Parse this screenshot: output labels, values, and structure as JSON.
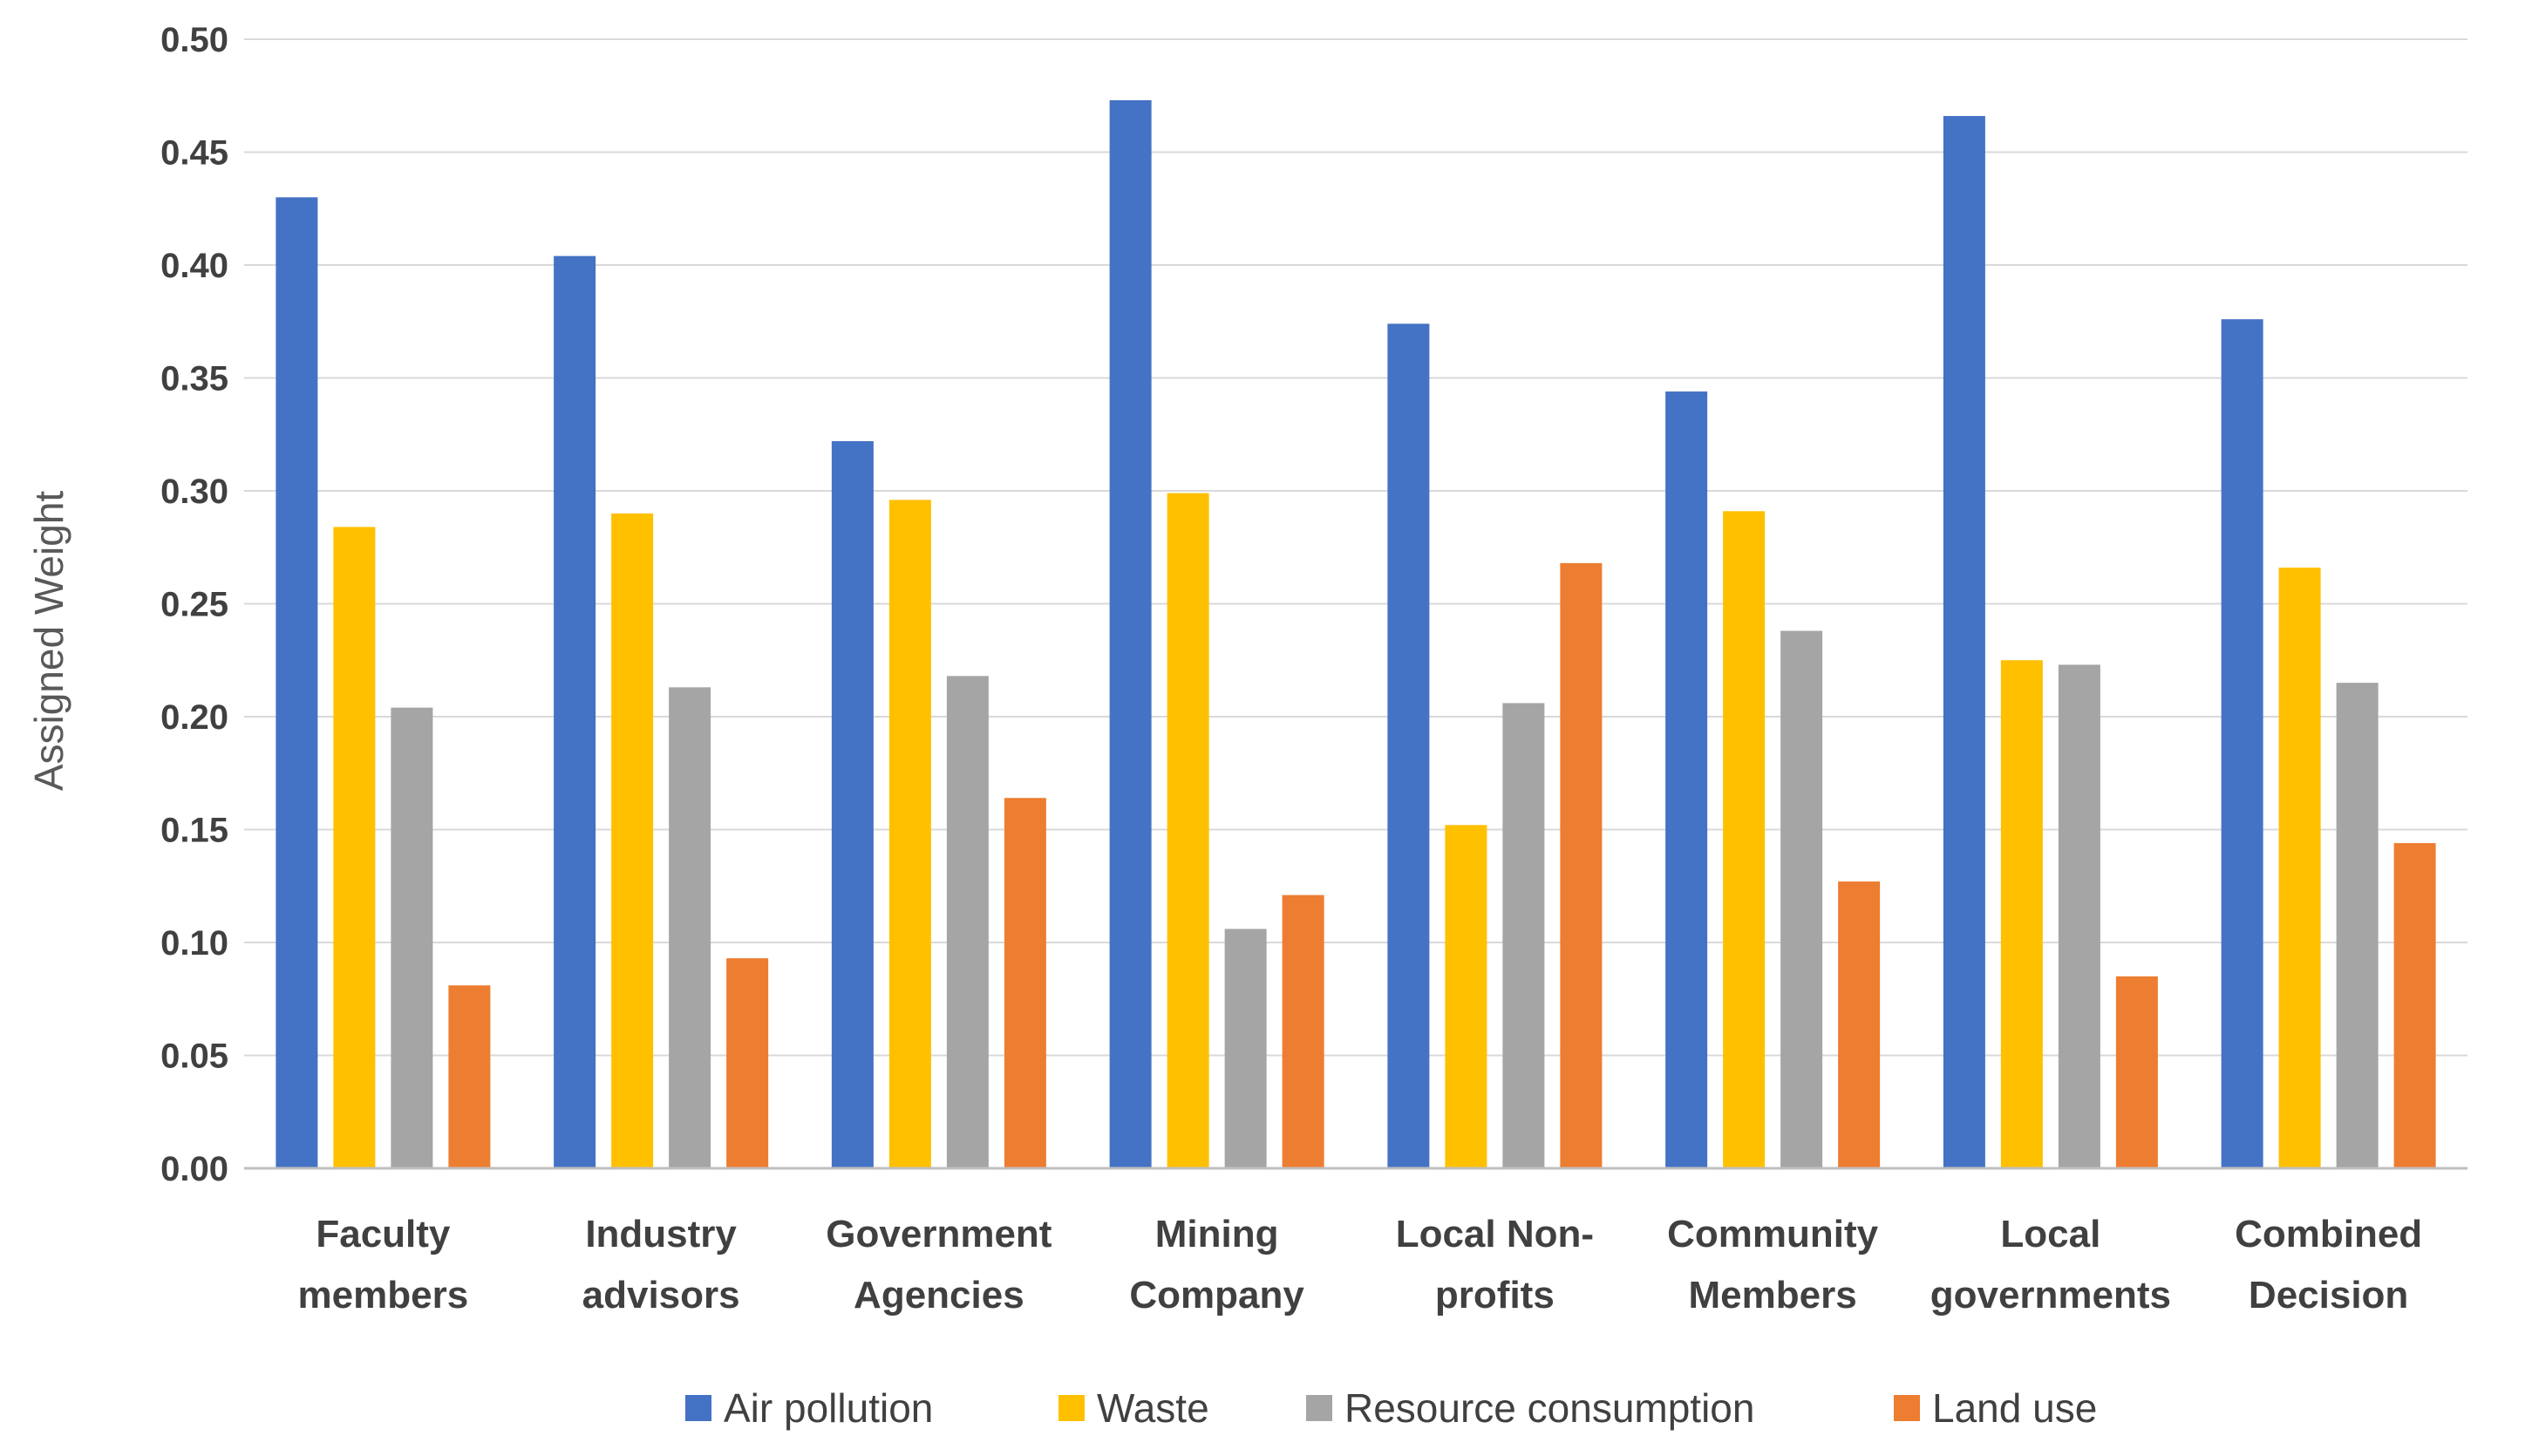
{
  "chart_data": {
    "type": "bar",
    "title": "",
    "xlabel": "",
    "ylabel": "Assigned Weight",
    "ylim": [
      0,
      0.5
    ],
    "yticks": [
      0.0,
      0.05,
      0.1,
      0.15,
      0.2,
      0.25,
      0.3,
      0.35,
      0.4,
      0.45,
      0.5
    ],
    "ytick_labels": [
      "0.00",
      "0.05",
      "0.10",
      "0.15",
      "0.20",
      "0.25",
      "0.30",
      "0.35",
      "0.40",
      "0.45",
      "0.50"
    ],
    "grid": true,
    "legend_position": "bottom",
    "categories": [
      [
        "Faculty",
        "members"
      ],
      [
        "Industry",
        "advisors"
      ],
      [
        "Government",
        "Agencies"
      ],
      [
        "Mining",
        "Company"
      ],
      [
        "Local Non-",
        "profits"
      ],
      [
        "Community",
        "Members"
      ],
      [
        "Local",
        "governments"
      ],
      [
        "Combined",
        "Decision"
      ]
    ],
    "series": [
      {
        "name": "Air pollution",
        "color": "#4472C4",
        "values": [
          0.43,
          0.404,
          0.322,
          0.473,
          0.374,
          0.344,
          0.466,
          0.376
        ]
      },
      {
        "name": "Waste",
        "color": "#FFC000",
        "values": [
          0.284,
          0.29,
          0.296,
          0.299,
          0.152,
          0.291,
          0.225,
          0.266
        ]
      },
      {
        "name": "Resource consumption",
        "color": "#A5A5A5",
        "values": [
          0.204,
          0.213,
          0.218,
          0.106,
          0.206,
          0.238,
          0.223,
          0.215
        ]
      },
      {
        "name": "Land use",
        "color": "#ED7D31",
        "values": [
          0.081,
          0.093,
          0.164,
          0.121,
          0.268,
          0.127,
          0.085,
          0.144
        ]
      }
    ]
  }
}
